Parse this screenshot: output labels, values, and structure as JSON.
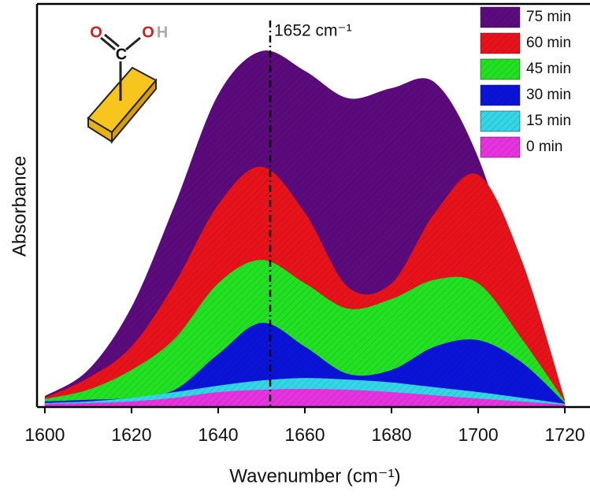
{
  "chart_data": {
    "type": "area",
    "x_label": "Wavenumber (cm⁻¹)",
    "y_label": "Absorbance",
    "x": [
      1600,
      1610,
      1620,
      1630,
      1640,
      1650,
      1660,
      1670,
      1680,
      1690,
      1700,
      1710,
      1720
    ],
    "series": [
      {
        "name": "75 min",
        "color": "#5b0b7c",
        "values": [
          0.027,
          0.092,
          0.248,
          0.502,
          0.775,
          0.883,
          0.834,
          0.766,
          0.791,
          0.805,
          0.619,
          0.287,
          0.018
        ]
      },
      {
        "name": "60 min",
        "color": "#e8131a",
        "values": [
          0.023,
          0.072,
          0.15,
          0.307,
          0.502,
          0.596,
          0.482,
          0.297,
          0.307,
          0.482,
          0.576,
          0.365,
          0.018
        ]
      },
      {
        "name": "45 min",
        "color": "#22e022",
        "values": [
          0.02,
          0.043,
          0.092,
          0.17,
          0.307,
          0.365,
          0.307,
          0.244,
          0.268,
          0.316,
          0.307,
          0.17,
          0.014
        ]
      },
      {
        "name": "30 min",
        "color": "#0a14d8",
        "values": [
          0.014,
          0.018,
          0.023,
          0.043,
          0.131,
          0.209,
          0.15,
          0.082,
          0.092,
          0.15,
          0.166,
          0.111,
          0.01
        ]
      },
      {
        "name": "15 min",
        "color": "#33d6e6",
        "values": [
          0.01,
          0.014,
          0.023,
          0.037,
          0.053,
          0.066,
          0.072,
          0.068,
          0.061,
          0.049,
          0.037,
          0.023,
          0.008
        ]
      },
      {
        "name": "0 min",
        "color": "#e533e0",
        "values": [
          0.008,
          0.01,
          0.014,
          0.023,
          0.037,
          0.043,
          0.045,
          0.043,
          0.037,
          0.029,
          0.021,
          0.014,
          0.006
        ]
      }
    ],
    "xlim": [
      1598.2,
      1725.8
    ],
    "ylim": [
      0,
      1
    ],
    "xticks": [
      1600,
      1620,
      1640,
      1660,
      1680,
      1700,
      1720
    ],
    "annotations": [
      {
        "x": 1652,
        "label": "1652 cm⁻¹"
      }
    ],
    "inset_labels": [
      "O",
      "C",
      "O",
      "H"
    ]
  }
}
